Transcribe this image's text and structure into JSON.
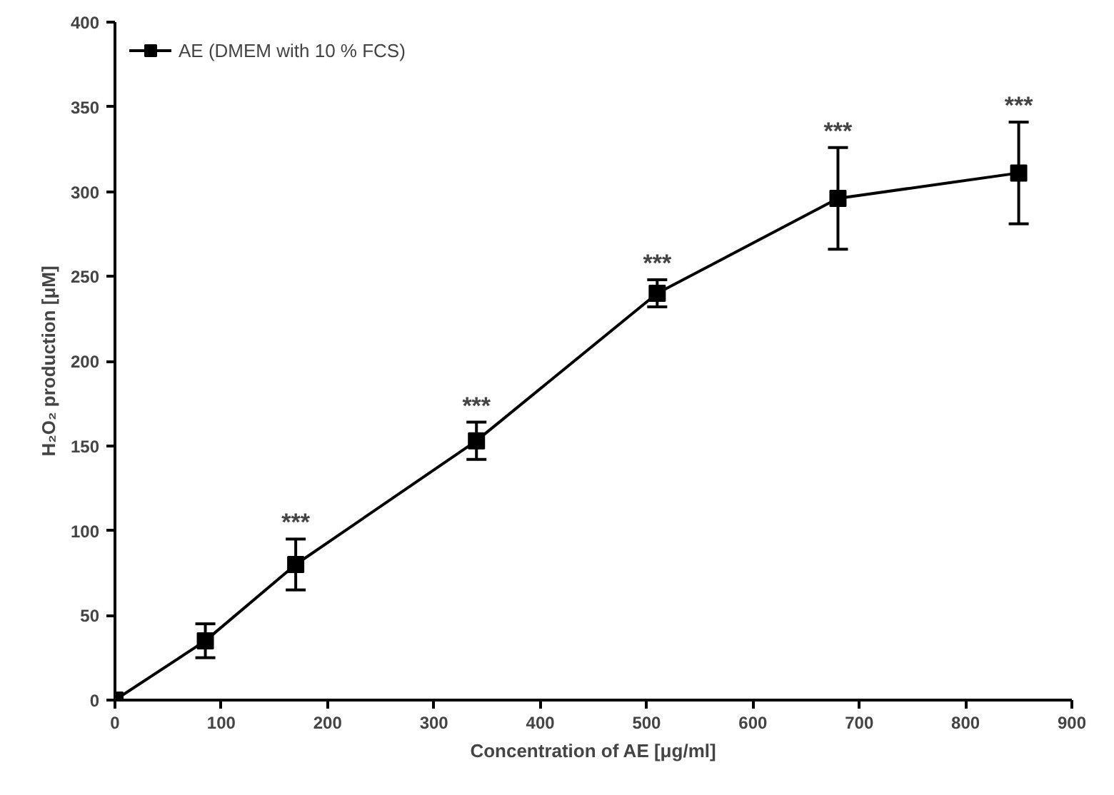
{
  "chart_data": {
    "type": "line",
    "xlabel": "Concentration of AE [μg/ml]",
    "ylabel": "H₂O₂ production [μM]",
    "x": [
      0,
      85,
      170,
      340,
      510,
      680,
      850
    ],
    "series": [
      {
        "name": "AE (DMEM with 10 % FCS)",
        "color": "#000000",
        "values": [
          0,
          35,
          80,
          153,
          240,
          296,
          311
        ],
        "errors": [
          null,
          10,
          15,
          11,
          8,
          30,
          30
        ]
      }
    ],
    "xlim": [
      0,
      900
    ],
    "xticks": [
      0,
      100,
      200,
      300,
      400,
      500,
      600,
      700,
      800,
      900
    ],
    "ylim": [
      0,
      400
    ],
    "yticks": [
      0,
      50,
      100,
      150,
      200,
      250,
      300,
      350,
      400
    ],
    "grid": false,
    "legend": "top left",
    "marker": "square",
    "line_style": "solid",
    "annotations": [
      {
        "text": "***",
        "x": 170,
        "y": 95
      },
      {
        "text": "***",
        "x": 340,
        "y": 164
      },
      {
        "text": "***",
        "x": 510,
        "y": 248
      },
      {
        "text": "***",
        "x": 680,
        "y": 326
      },
      {
        "text": "***",
        "x": 850,
        "y": 341
      }
    ]
  }
}
